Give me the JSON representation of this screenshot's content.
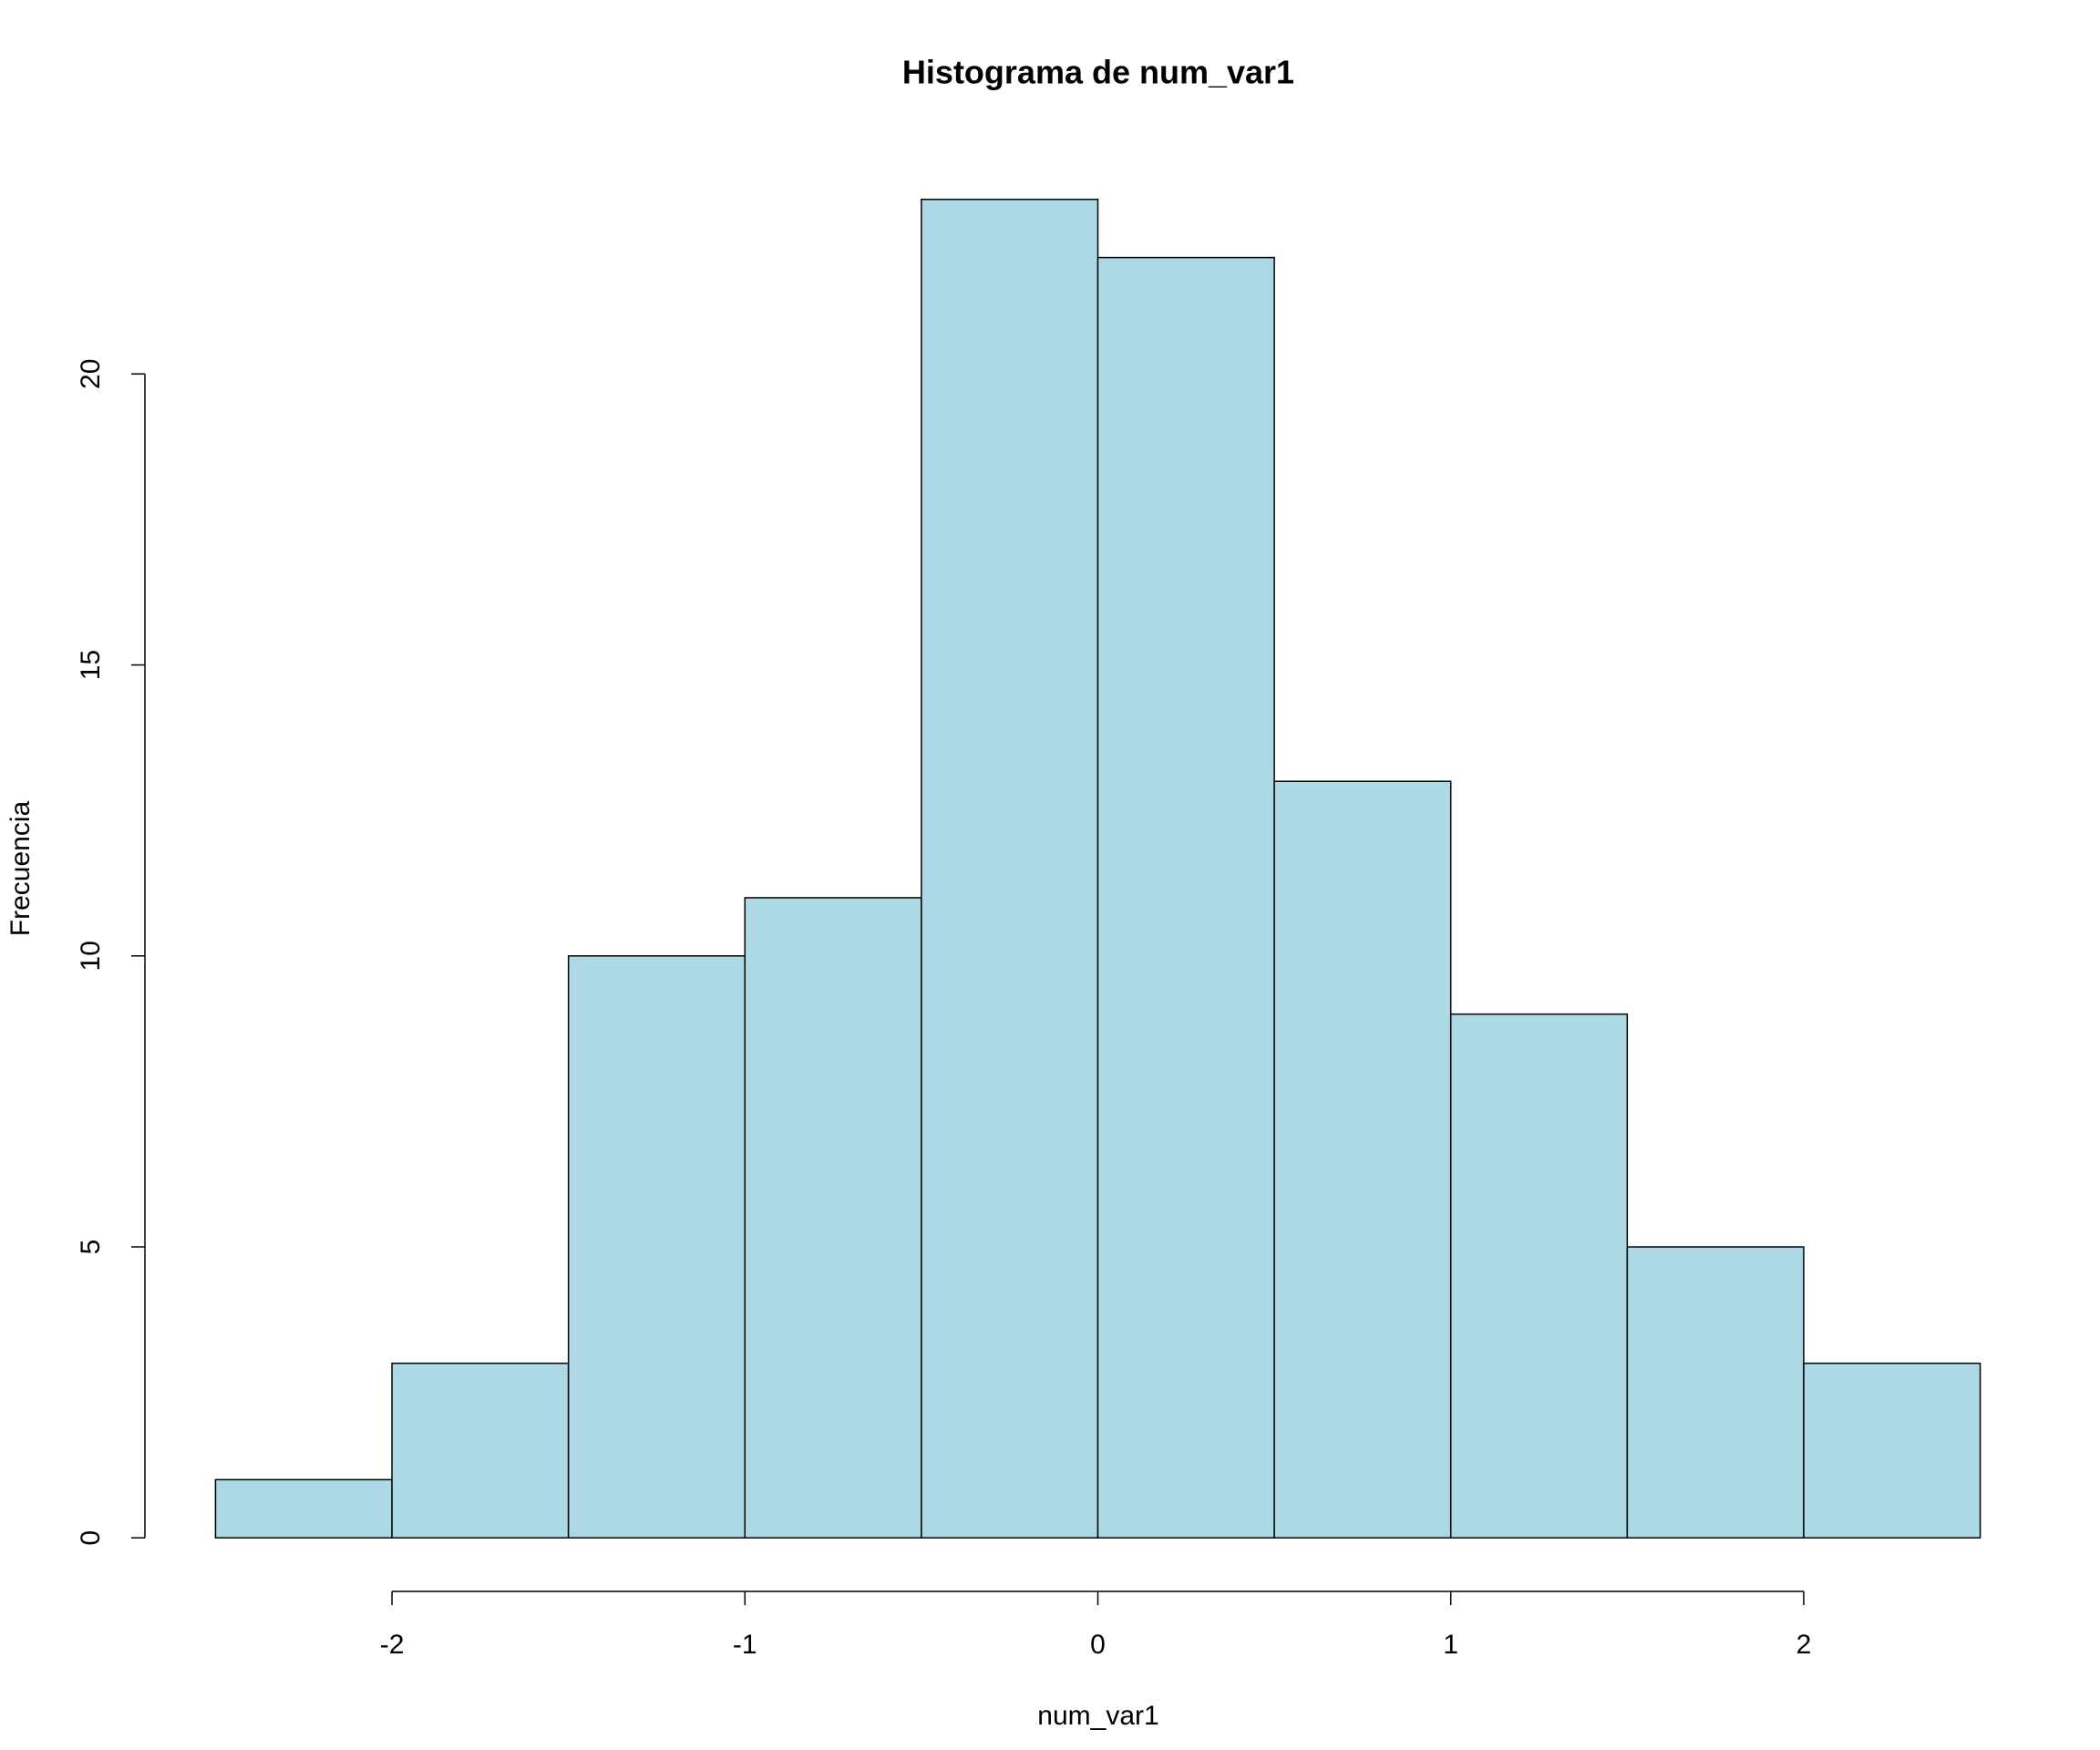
{
  "chart_data": {
    "type": "histogram",
    "title": "Histograma de num_var1",
    "x_label": "num_var1",
    "y_label": "Frecuencia",
    "bins": [
      -2.5,
      -2,
      -1.5,
      -1,
      -0.5,
      0,
      0.5,
      1,
      1.5,
      2,
      2.5
    ],
    "values": [
      1,
      3,
      10,
      11,
      23,
      22,
      13,
      9,
      5,
      3
    ],
    "color": "#add8e6",
    "edgecolor": "#000000",
    "xlim": [
      -2.7,
      2.7
    ],
    "xticks": [
      -2,
      -1,
      0,
      1,
      2
    ],
    "ylim": [
      -0.92,
      23.92
    ],
    "yticks": [
      0,
      5,
      10,
      15,
      20
    ],
    "grid": false
  }
}
